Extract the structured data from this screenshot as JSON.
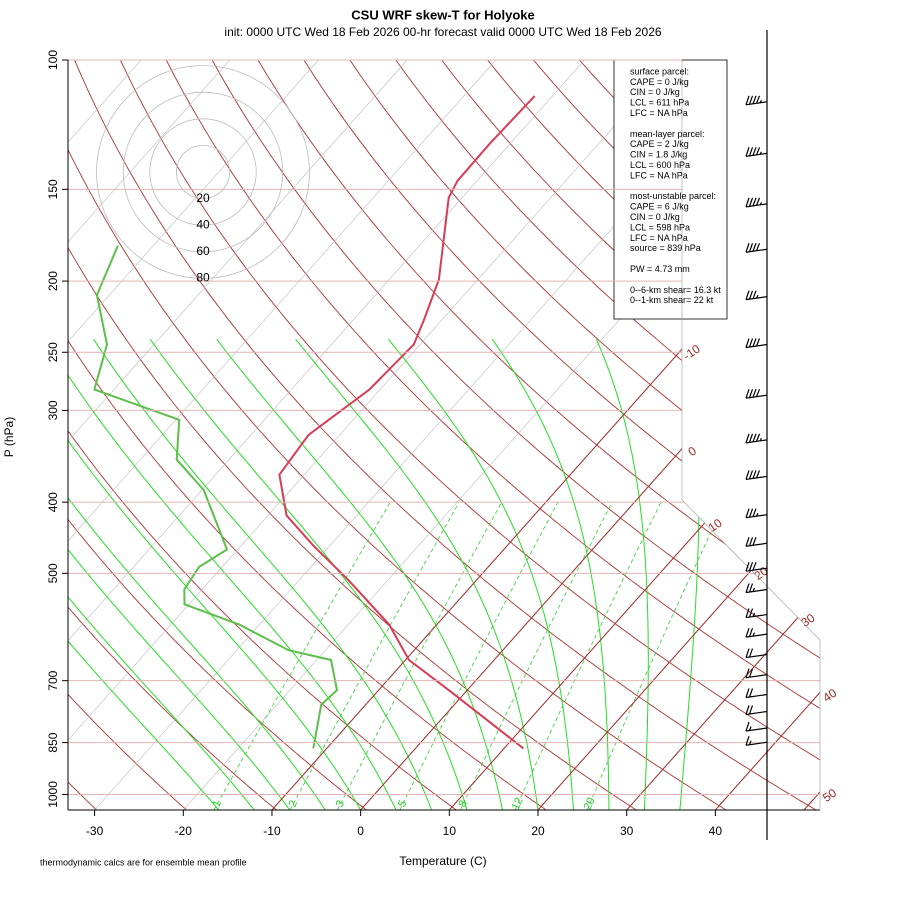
{
  "chart_data": {
    "type": "skewt",
    "title": "CSU WRF skew-T for Holyoke",
    "subtitle": "init: 0000 UTC Wed 18 Feb 2026     00-hr forecast valid 0000 UTC Wed 18 Feb 2026",
    "x_label": "Temperature (C)",
    "y_label": "P (hPa)",
    "footnote": "thermodynamic calcs are for ensemble mean profile",
    "log_scale_y": true,
    "xlim": [
      -33,
      51.8
    ],
    "ylim": [
      1050,
      100
    ],
    "xticks": [
      -30,
      -20,
      -10,
      0,
      10,
      20,
      30,
      40
    ],
    "yticks": [
      100,
      150,
      200,
      250,
      300,
      400,
      500,
      700,
      850,
      1000
    ],
    "isotherm_labels": [
      -10,
      0,
      10,
      20,
      30,
      40,
      50
    ],
    "mixing_ratio_labels": [
      1,
      2,
      3,
      5,
      8,
      12,
      20
    ],
    "series": [
      {
        "name": "temperature",
        "color": "#d63c55",
        "pressure": [
          866,
          721,
          656,
          587,
          511,
          458,
          417,
          367,
          324,
          281,
          244,
          225,
          199,
          176,
          154,
          146,
          130,
          112
        ],
        "values": [
          12.2,
          -2.1,
          -9.6,
          -15.4,
          -24.4,
          -31.9,
          -37.9,
          -42.8,
          -43.5,
          -41.2,
          -40.7,
          -42.1,
          -44.4,
          -47.8,
          -51.5,
          -52.2,
          -52.3,
          -52.0
        ]
      },
      {
        "name": "dewpoint",
        "color": "#5cbf4a",
        "pressure": [
          866,
          755,
          721,
          656,
          636,
          587,
          551,
          526,
          490,
          464,
          385,
          350,
          309,
          281,
          244,
          209,
          179
        ],
        "values": [
          -11.5,
          -15.0,
          -14.7,
          -18.4,
          -24.2,
          -32.3,
          -40.5,
          -42.0,
          -42.6,
          -41.2,
          -49.8,
          -55.9,
          -59.6,
          -72.2,
          -75.3,
          -81.4,
          -84.0
        ]
      }
    ],
    "winds": {
      "pressure": [
        114,
        134,
        157,
        181,
        210,
        244,
        286,
        329,
        369,
        416,
        455,
        492,
        526,
        569,
        605,
        645,
        687,
        731,
        771,
        812,
        849
      ],
      "speed": [
        45,
        45,
        45,
        40,
        35,
        40,
        40,
        45,
        40,
        35,
        30,
        30,
        25,
        25,
        25,
        20,
        20,
        20,
        20,
        15,
        15
      ]
    },
    "hodograph_rings": [
      20,
      40,
      60,
      80
    ],
    "info_box": [
      [
        "surface parcel:",
        "CAPE = 0 J/kg",
        "CIN = 0 J/kg",
        "LCL = 611 hPa",
        "LFC = NA hPa"
      ],
      [
        "mean-layer parcel:",
        "CAPE = 2 J/kg",
        "CIN = 1.8 J/kg",
        "LCL = 600 hPa",
        "LFC = NA hPa"
      ],
      [
        "most-unstable parcel:",
        "CAPE = 6 J/kg",
        "CIN = 0 J/kg",
        "LCL = 598 hPa",
        "LFC = NA hPa",
        "source = 839 hPa"
      ],
      [
        "PW =  4.73 mm"
      ],
      [
        "0--6-km shear= 16.3 kt",
        "0--1-km shear= 22 kt"
      ]
    ]
  }
}
